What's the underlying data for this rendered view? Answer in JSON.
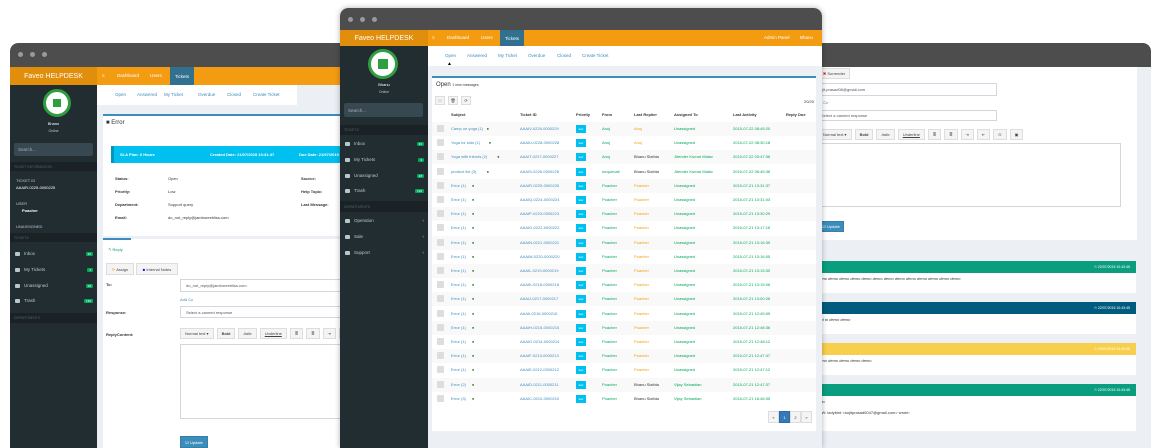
{
  "brand": "Faveo HELPDESK",
  "nav": {
    "dashboard": "Dashboard",
    "users": "Users",
    "tickets": "Tickets",
    "admin": "Admin Panel",
    "user": "Bhanu"
  },
  "subnav": [
    "Open",
    "Answered",
    "My Ticket",
    "Overdue",
    "Closed",
    "Create Ticket"
  ],
  "profile": {
    "name": "Bhanu",
    "status": "Online"
  },
  "search_placeholder": "Search...",
  "sidebar": {
    "tickets_header": "TICKETS",
    "departments_header": "DEPARTMENTS",
    "items": [
      {
        "label": "Inbox",
        "count": "36"
      },
      {
        "label": "My Tickets",
        "count": "3"
      },
      {
        "label": "Unassigned",
        "count": "28"
      },
      {
        "label": "Trash",
        "count": "136"
      }
    ],
    "departments": [
      "Operation",
      "Sale",
      "Support"
    ]
  },
  "colors": {
    "brand_orange": "#f39c12",
    "sidebar": "#222d32",
    "accent": "#3c8dbc",
    "sla": "#00c0ef",
    "event_teal": "#0a9e7f",
    "event_blue": "#005b7f",
    "event_yellow": "#f8cf4c"
  },
  "left": {
    "ticket_info_header": "TICKET INFORMATION",
    "ticket_id_label": "TICKET ID",
    "ticket_id": "AAAIR-0225-0000225",
    "user_label": "USER",
    "user": "Poacher",
    "assignee": "UNASSIGNED",
    "title": "Error",
    "sla": {
      "plan": "SLA Plan: 6 Hours",
      "created": "Created Date: 21/07/2015 13:31:37",
      "due": "Due Date: 21/07/2015"
    },
    "info": [
      {
        "label": "Status:",
        "value": "Open"
      },
      {
        "label": "Priority:",
        "value": "Low"
      },
      {
        "label": "Department:",
        "value": "Support query"
      },
      {
        "label": "Email:",
        "value": "do_not_reply@jamboreebliss.com"
      }
    ],
    "info2": [
      "Source:",
      "Help Topic:",
      "Last Message:"
    ],
    "reply_tab": "Reply",
    "assign": "Assign",
    "internal_notes": "Internal Notes",
    "to_label": "To:",
    "to_value": "do_not_reply@jamboreebliss.com",
    "add_cc": "Add Cc",
    "response_label": "Response:",
    "response_placeholder": "Select a canned response",
    "content_label": "ReplyContent:",
    "update": "Update"
  },
  "editor": {
    "normal_text": "Normal text ▾",
    "bold": "Bold",
    "italic": "Italic",
    "underline": "Underline"
  },
  "center": {
    "heading": "Open",
    "new_messages": "1 new messages",
    "count": "20/20",
    "columns": [
      "Subject",
      "Ticket ID",
      "Priority",
      "From",
      "Last Replier",
      "Assigned To",
      "Last Activity",
      "Reply Due"
    ],
    "rows": [
      [
        "Camp on yoga (1)",
        "AAAIV-0229-0000229",
        "low",
        "Anuj",
        "Anuj",
        "Unassigned",
        "2015-07-22 08:45:20"
      ],
      [
        "Yoga for kids (1)",
        "AAAIU-0228-0000228",
        "low",
        "Anuj",
        "Anuj",
        "Unassigned",
        "2015-07-22 08:30:18"
      ],
      [
        "Yoga with friends (2)",
        "AAAIT-0227-0000227",
        "low",
        "Anuj",
        "Bhanu Slathia",
        "Jitender Kumar Malav",
        "2015-07-22 03:47:36"
      ],
      [
        "product list (3)",
        "AAAIS-0226-0000226",
        "low",
        "Iorquecait",
        "Bhanu Slathia",
        "Jitender Kumar Malav",
        "2015-07-22 06:45:36"
      ],
      [
        "Error (1)",
        "AAAIR-0225-0000225",
        "low",
        "Poacher",
        "Poacher",
        "Unassigned",
        "2015-07-21 13:31:37"
      ],
      [
        "Error (1)",
        "AAAIQ-0224-0000224",
        "low",
        "Poacher",
        "Poacher",
        "Unassigned",
        "2015-07-21 13:31:03"
      ],
      [
        "Error (1)",
        "AAAIP-0223-0000223",
        "low",
        "Poacher",
        "Poacher",
        "Unassigned",
        "2015-07-21 13:30:29"
      ],
      [
        "Error (1)",
        "AAAIO-0222-0000222",
        "low",
        "Poacher",
        "Poacher",
        "Unassigned",
        "2015-07-21 13:17:16"
      ],
      [
        "Error (1)",
        "AAAIN-0221-0000221",
        "low",
        "Poacher",
        "Poacher",
        "Unassigned",
        "2015-07-21 13:16:39"
      ],
      [
        "Error (1)",
        "AAAIM-0220-0000220",
        "low",
        "Poacher",
        "Poacher",
        "Unassigned",
        "2015-07-21 13:16:05"
      ],
      [
        "Error (1)",
        "AAAIL-0219-0000219",
        "low",
        "Poacher",
        "Poacher",
        "Unassigned",
        "2015-07-21 13:15:30"
      ],
      [
        "Error (1)",
        "AAAIK-0218-0000218",
        "low",
        "Poacher",
        "Poacher",
        "Unassigned",
        "2015-07-21 13:15:06"
      ],
      [
        "Error (1)",
        "AAAIJ-0217-0000217",
        "low",
        "Poacher",
        "Poacher",
        "Unassigned",
        "2015-07-21 13:00:26"
      ],
      [
        "Error (1)",
        "AAAII-0216-0000216",
        "low",
        "Poacher",
        "Poacher",
        "Unassigned",
        "2015-07-21 12:49:05"
      ],
      [
        "Error (1)",
        "AAAIH-0215-0000215",
        "low",
        "Poacher",
        "Poacher",
        "Unassigned",
        "2015-07-21 12:48:36"
      ],
      [
        "Error (1)",
        "AAAIG-0214-0000214",
        "low",
        "Poacher",
        "Poacher",
        "Unassigned",
        "2015-07-21 12:48:12"
      ],
      [
        "Error (1)",
        "AAAIF-0213-0000213",
        "low",
        "Poacher",
        "Poacher",
        "Unassigned",
        "2015-07-21 12:47:47"
      ],
      [
        "Error (1)",
        "AAAIE-0212-0000212",
        "low",
        "Poacher",
        "Poacher",
        "Unassigned",
        "2015-07-21 12:47:12"
      ],
      [
        "Error (2)",
        "AAAID-0211-0000211",
        "low",
        "Poacher",
        "Bhanu Slathia",
        "Vijay Sebastian",
        "2015-07-21 12:47:37"
      ],
      [
        "Error (3)",
        "AAAIC-0210-0000210",
        "low",
        "Poacher",
        "Bhanu Slathia",
        "Vijay Sebastian",
        "2015-07-21 16:46:35"
      ]
    ],
    "pagination": [
      "«",
      "1",
      "2",
      "»"
    ]
  },
  "right": {
    "surrender": "Surrender",
    "email": "sujit.prasad08@gmail.com",
    "add_cc": "Add Cc",
    "response_placeholder": "Select a canned response",
    "update": "Update",
    "events": [
      {
        "time": "22/07/2015 10:43:45",
        "body": "demo demo demo demo demo demo demo demo demo demo demo demo demo"
      },
      {
        "time": "22/07/2015 10:43:45",
        "body": "ned to demo demo"
      },
      {
        "time": "22/07/2015 10:43:45",
        "body": "demo demo demo demo demo"
      },
      {
        "time": "22/07/2015 10:43:45",
        "body": "emo",
        "quote": "FW: ladybird <sujitprasad0047@gmail.com> wrote:"
      }
    ]
  }
}
